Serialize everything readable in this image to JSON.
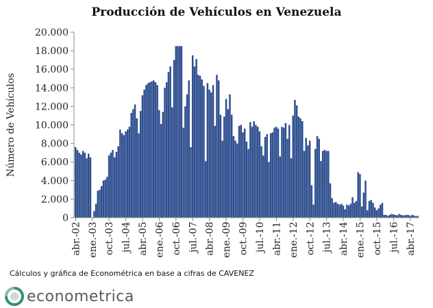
{
  "chart_data": {
    "type": "bar",
    "title": "Producción de Vehículos en Venezuela",
    "ylabel": "Número de Vehículos",
    "xlabel": "",
    "ylim": [
      0,
      20000
    ],
    "y_ticks": [
      "0",
      "2.000",
      "4.000",
      "6.000",
      "8.000",
      "10.000",
      "12.000",
      "14.000",
      "16.000",
      "18.000",
      "20.000"
    ],
    "x_tick_labels": [
      "abr.-02",
      "ene.-03",
      "oct.-03",
      "jul.-04",
      "abr.-05",
      "ene.-06",
      "oct.-06",
      "jul.-07",
      "abr.-08",
      "ene.-09",
      "oct.-09",
      "jul.-10",
      "abr.-11",
      "ene.-12",
      "oct.-12",
      "jul.-13",
      "abr.-14",
      "ene.-15",
      "oct.-15",
      "jul.-16",
      "abr.-17"
    ],
    "grid": false,
    "bar_color": "#2f4f8f",
    "series": [
      {
        "categories_start": "abr.-02",
        "frequency": "monthly",
        "values": [
          7600,
          7300,
          7000,
          6800,
          7200,
          7000,
          6400,
          6900,
          6500,
          0,
          700,
          1500,
          2900,
          3000,
          3400,
          4000,
          4100,
          4400,
          6700,
          7000,
          7300,
          6500,
          7100,
          7700,
          9500,
          9100,
          8900,
          9300,
          9500,
          9800,
          11300,
          11700,
          12200,
          10700,
          9100,
          11500,
          13200,
          13800,
          14300,
          14500,
          14600,
          14700,
          14800,
          14600,
          14300,
          11600,
          10100,
          11400,
          14000,
          14600,
          15700,
          16300,
          11900,
          17000,
          18500,
          18500,
          18500,
          18500,
          9700,
          12000,
          13300,
          14800,
          7600,
          17500,
          16300,
          17100,
          15400,
          15300,
          14900,
          14200,
          6100,
          14500,
          13800,
          13500,
          14300,
          9900,
          15400,
          14800,
          11100,
          8300,
          10900,
          12800,
          11700,
          13300,
          11100,
          8800,
          8300,
          8000,
          9900,
          10000,
          9200,
          9600,
          8200,
          7400,
          10300,
          9800,
          10400,
          10000,
          9800,
          9300,
          7700,
          6700,
          8700,
          9000,
          6000,
          9100,
          9200,
          9700,
          9800,
          9600,
          6600,
          9800,
          9700,
          10200,
          8500,
          10000,
          6400,
          11000,
          12700,
          12100,
          10900,
          10700,
          10400,
          7200,
          8600,
          7800,
          8300,
          3500,
          1400,
          7400,
          8800,
          8500,
          6100,
          7200,
          7300,
          7200,
          7200,
          3700,
          2100,
          1600,
          1700,
          1500,
          1400,
          1500,
          1300,
          900,
          1400,
          1300,
          1500,
          2200,
          1600,
          1800,
          4900,
          4700,
          1200,
          2700,
          4000,
          800,
          1800,
          1900,
          1600,
          1100,
          800,
          1000,
          1400,
          1600,
          300,
          300,
          200,
          300,
          400,
          350,
          300,
          250,
          400,
          300,
          250,
          250,
          300,
          300,
          200,
          300,
          250,
          150,
          200
        ]
      }
    ],
    "source_note": "Cálculos y gráfica de Econométrica en base a cifras de CAVENEZ"
  },
  "logo": {
    "text": "econometrica",
    "icon": "econometrica-logo-icon",
    "colors": {
      "ring": "#2f8f6f",
      "inner": "#cfd8df",
      "text": "#5a5a5a"
    }
  }
}
